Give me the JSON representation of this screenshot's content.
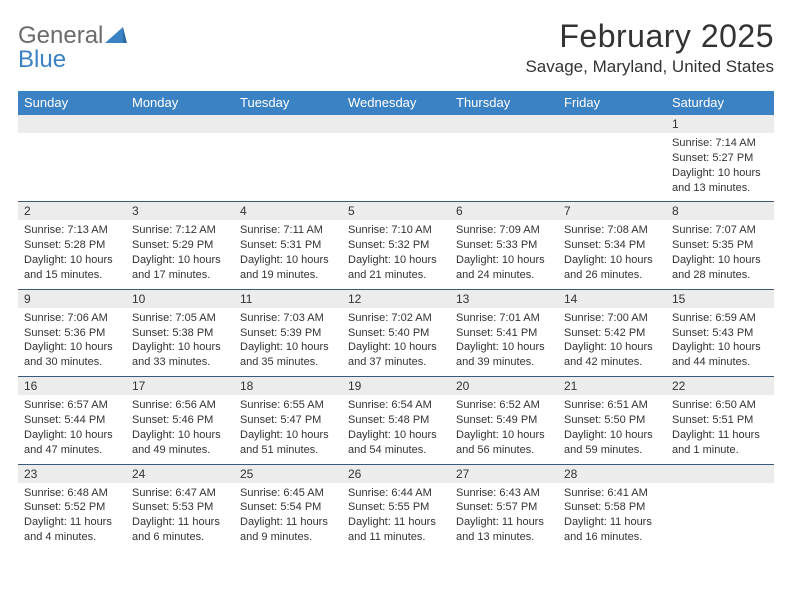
{
  "brand": {
    "text1": "General",
    "text2": "Blue",
    "color_gray": "#6b6b6b",
    "color_blue": "#3b82c4"
  },
  "title": "February 2025",
  "location": "Savage, Maryland, United States",
  "header_bg": "#3b82c4",
  "stripe_bg": "#ececec",
  "rule_color": "#3b5a7a",
  "text_color": "#333333",
  "font_size_title": 32,
  "font_size_location": 17,
  "font_size_dow": 13,
  "font_size_cell": 11,
  "dow": [
    "Sunday",
    "Monday",
    "Tuesday",
    "Wednesday",
    "Thursday",
    "Friday",
    "Saturday"
  ],
  "weeks": [
    [
      null,
      null,
      null,
      null,
      null,
      null,
      {
        "d": "1",
        "sr": "7:14 AM",
        "ss": "5:27 PM",
        "dl": "10 hours and 13 minutes."
      }
    ],
    [
      {
        "d": "2",
        "sr": "7:13 AM",
        "ss": "5:28 PM",
        "dl": "10 hours and 15 minutes."
      },
      {
        "d": "3",
        "sr": "7:12 AM",
        "ss": "5:29 PM",
        "dl": "10 hours and 17 minutes."
      },
      {
        "d": "4",
        "sr": "7:11 AM",
        "ss": "5:31 PM",
        "dl": "10 hours and 19 minutes."
      },
      {
        "d": "5",
        "sr": "7:10 AM",
        "ss": "5:32 PM",
        "dl": "10 hours and 21 minutes."
      },
      {
        "d": "6",
        "sr": "7:09 AM",
        "ss": "5:33 PM",
        "dl": "10 hours and 24 minutes."
      },
      {
        "d": "7",
        "sr": "7:08 AM",
        "ss": "5:34 PM",
        "dl": "10 hours and 26 minutes."
      },
      {
        "d": "8",
        "sr": "7:07 AM",
        "ss": "5:35 PM",
        "dl": "10 hours and 28 minutes."
      }
    ],
    [
      {
        "d": "9",
        "sr": "7:06 AM",
        "ss": "5:36 PM",
        "dl": "10 hours and 30 minutes."
      },
      {
        "d": "10",
        "sr": "7:05 AM",
        "ss": "5:38 PM",
        "dl": "10 hours and 33 minutes."
      },
      {
        "d": "11",
        "sr": "7:03 AM",
        "ss": "5:39 PM",
        "dl": "10 hours and 35 minutes."
      },
      {
        "d": "12",
        "sr": "7:02 AM",
        "ss": "5:40 PM",
        "dl": "10 hours and 37 minutes."
      },
      {
        "d": "13",
        "sr": "7:01 AM",
        "ss": "5:41 PM",
        "dl": "10 hours and 39 minutes."
      },
      {
        "d": "14",
        "sr": "7:00 AM",
        "ss": "5:42 PM",
        "dl": "10 hours and 42 minutes."
      },
      {
        "d": "15",
        "sr": "6:59 AM",
        "ss": "5:43 PM",
        "dl": "10 hours and 44 minutes."
      }
    ],
    [
      {
        "d": "16",
        "sr": "6:57 AM",
        "ss": "5:44 PM",
        "dl": "10 hours and 47 minutes."
      },
      {
        "d": "17",
        "sr": "6:56 AM",
        "ss": "5:46 PM",
        "dl": "10 hours and 49 minutes."
      },
      {
        "d": "18",
        "sr": "6:55 AM",
        "ss": "5:47 PM",
        "dl": "10 hours and 51 minutes."
      },
      {
        "d": "19",
        "sr": "6:54 AM",
        "ss": "5:48 PM",
        "dl": "10 hours and 54 minutes."
      },
      {
        "d": "20",
        "sr": "6:52 AM",
        "ss": "5:49 PM",
        "dl": "10 hours and 56 minutes."
      },
      {
        "d": "21",
        "sr": "6:51 AM",
        "ss": "5:50 PM",
        "dl": "10 hours and 59 minutes."
      },
      {
        "d": "22",
        "sr": "6:50 AM",
        "ss": "5:51 PM",
        "dl": "11 hours and 1 minute."
      }
    ],
    [
      {
        "d": "23",
        "sr": "6:48 AM",
        "ss": "5:52 PM",
        "dl": "11 hours and 4 minutes."
      },
      {
        "d": "24",
        "sr": "6:47 AM",
        "ss": "5:53 PM",
        "dl": "11 hours and 6 minutes."
      },
      {
        "d": "25",
        "sr": "6:45 AM",
        "ss": "5:54 PM",
        "dl": "11 hours and 9 minutes."
      },
      {
        "d": "26",
        "sr": "6:44 AM",
        "ss": "5:55 PM",
        "dl": "11 hours and 11 minutes."
      },
      {
        "d": "27",
        "sr": "6:43 AM",
        "ss": "5:57 PM",
        "dl": "11 hours and 13 minutes."
      },
      {
        "d": "28",
        "sr": "6:41 AM",
        "ss": "5:58 PM",
        "dl": "11 hours and 16 minutes."
      },
      null
    ]
  ],
  "labels": {
    "sunrise": "Sunrise:",
    "sunset": "Sunset:",
    "daylight": "Daylight:"
  }
}
